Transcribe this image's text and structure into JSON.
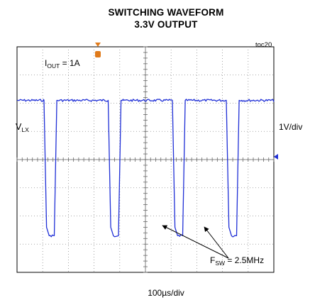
{
  "chart_data": {
    "type": "line",
    "title": "SWITCHING WAVEFORM",
    "subtitle": "3.3V OUTPUT",
    "figure_tag": "toc20",
    "trace_label": {
      "main": "V",
      "sub": "LX"
    },
    "vertical_scale": "1V/div",
    "horizontal_scale": "100µs/div",
    "condition": {
      "main": "I",
      "sub": "OUT",
      "value": " = 1A"
    },
    "annotation": {
      "main": "F",
      "sub": "SW",
      "value": " = 2.5MHz"
    },
    "grid": true,
    "divisions": {
      "x": 10,
      "y": 8
    },
    "units": {
      "x": "div",
      "y": "div"
    },
    "series": [
      {
        "color": "#1f2fd6",
        "x": [
          0,
          1.05,
          1.15,
          1.25,
          1.45,
          1.55,
          1.65,
          3.55,
          3.65,
          3.75,
          3.95,
          4.05,
          4.15,
          6.05,
          6.15,
          6.25,
          6.45,
          6.55,
          6.65,
          8.15,
          8.25,
          8.35,
          8.55,
          8.65,
          8.75,
          10
        ],
        "y": [
          6.1,
          6.1,
          1.6,
          1.3,
          1.3,
          6.1,
          6.1,
          6.1,
          1.6,
          1.3,
          1.3,
          6.1,
          6.1,
          6.1,
          1.6,
          1.3,
          1.3,
          6.1,
          6.1,
          6.1,
          1.6,
          1.3,
          1.3,
          6.1,
          6.1,
          6.1
        ]
      }
    ],
    "markers": {
      "trigger_color": "#e07a1a",
      "ground_color": "#1f2fd6",
      "ground_level": 4.1
    }
  }
}
